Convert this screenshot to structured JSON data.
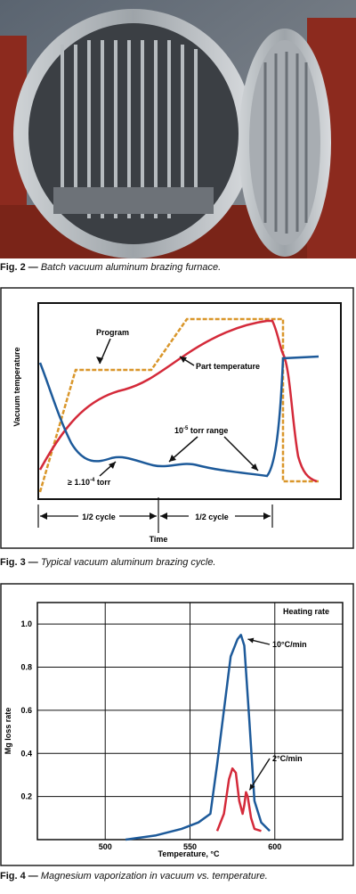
{
  "figures": {
    "fig2": {
      "label": "Fig. 2 —",
      "caption": "Batch vacuum aluminum brazing furnace."
    },
    "fig3": {
      "label": "Fig. 3 —",
      "caption": "Typical vacuum aluminum brazing cycle."
    },
    "fig4": {
      "label": "Fig. 4 —",
      "caption": "Magnesium vaporization in vacuum vs. temperature."
    }
  },
  "chart_data": [
    {
      "type": "line",
      "ylabel": "Vacuum temperature",
      "xlabel": "Time",
      "annotations": {
        "program": "Program",
        "part_temperature": "Part temperature",
        "torr_range_prefix": "10",
        "torr_range_exp": "-5",
        "torr_range_suffix": " torr range",
        "torr_min_prefix": "≥ 1.10",
        "torr_min_exp": "-4",
        "torr_min_suffix": " torr",
        "cycle1": "1/2 cycle",
        "cycle2": "1/2 cycle"
      },
      "colors": {
        "program": "#d9962a",
        "part": "#d42a3a",
        "vacuum": "#1d5a9a"
      }
    },
    {
      "type": "line",
      "xlabel": "Temperature, °C",
      "ylabel": "Mg loss rate",
      "legend_title": "Heating rate",
      "x_ticks": [
        500,
        550,
        600
      ],
      "y_ticks": [
        "0.2",
        "0.4",
        "0.6",
        "0.8",
        "1.0"
      ],
      "xlim": [
        460,
        640
      ],
      "ylim": [
        0,
        1.1
      ],
      "series": [
        {
          "name": "10°C/min",
          "color": "#1d5a9a",
          "x": [
            512,
            530,
            545,
            555,
            562,
            566,
            570,
            574,
            578,
            580,
            582,
            585,
            588,
            592,
            597
          ],
          "y": [
            0.0,
            0.02,
            0.05,
            0.08,
            0.12,
            0.35,
            0.6,
            0.85,
            0.93,
            0.95,
            0.9,
            0.55,
            0.18,
            0.08,
            0.04
          ]
        },
        {
          "name": "2°C/min",
          "color": "#d42a3a",
          "x": [
            566,
            570,
            573,
            575,
            577,
            579,
            581,
            582,
            583,
            584,
            586,
            588,
            592
          ],
          "y": [
            0.04,
            0.12,
            0.28,
            0.33,
            0.31,
            0.18,
            0.12,
            0.16,
            0.22,
            0.2,
            0.1,
            0.05,
            0.04
          ]
        }
      ]
    }
  ]
}
